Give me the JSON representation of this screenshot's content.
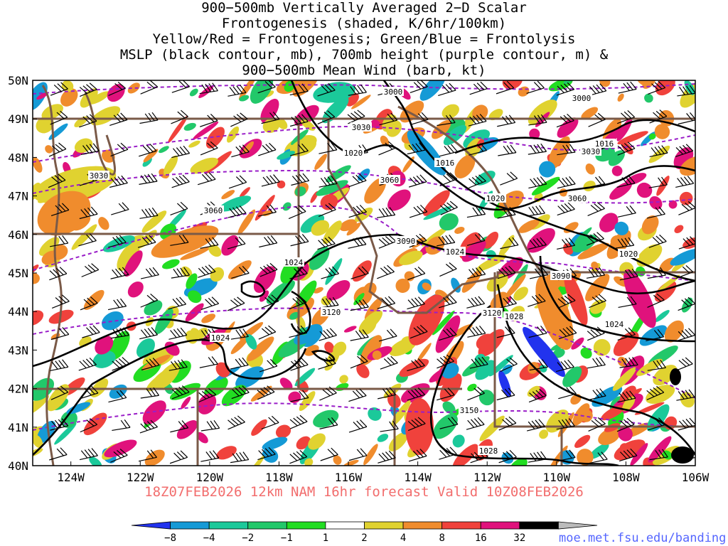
{
  "title": {
    "lines": [
      "900−500mb Vertically Averaged 2−D Scalar",
      "Frontogenesis (shaded, K/6hr/100km)",
      "Yellow/Red = Frontogenesis;  Green/Blue = Frontolysis",
      "MSLP (black contour, mb), 700mb height (purple contour, m) &",
      "900−500mb Mean Wind (barb, kt)"
    ]
  },
  "map": {
    "lat_labels": [
      "50N",
      "49N",
      "48N",
      "47N",
      "46N",
      "45N",
      "44N",
      "43N",
      "42N",
      "41N",
      "40N"
    ],
    "lon_labels": [
      "124W",
      "122W",
      "120W",
      "118W",
      "116W",
      "114W",
      "112W",
      "110W",
      "108W",
      "106W"
    ],
    "mslp_labels": [
      "1016",
      "1016",
      "1020",
      "1020",
      "1020",
      "1024",
      "1024",
      "1024",
      "1024",
      "1028",
      "1028"
    ],
    "height_labels": [
      "3000",
      "3000",
      "3030",
      "3030",
      "3030",
      "3060",
      "3060",
      "3060",
      "3090",
      "3090",
      "3120",
      "3120",
      "3150"
    ]
  },
  "valid_time": "18Z07FEB2026 12km NAM 16hr forecast Valid 10Z08FEB2026",
  "colorbar": {
    "labels": [
      "−8",
      "−4",
      "−2",
      "−1",
      "1",
      "2",
      "4",
      "8",
      "16",
      "32"
    ],
    "colors": [
      "#2233ee",
      "#159ad6",
      "#1bc99a",
      "#22c86a",
      "#22dd22",
      "#ffffff",
      "#e0d230",
      "#f08c2d",
      "#f0423c",
      "#e0127c",
      "#000000",
      "#bbbbbb"
    ]
  },
  "credit": "moe.met.fsu.edu/banding"
}
